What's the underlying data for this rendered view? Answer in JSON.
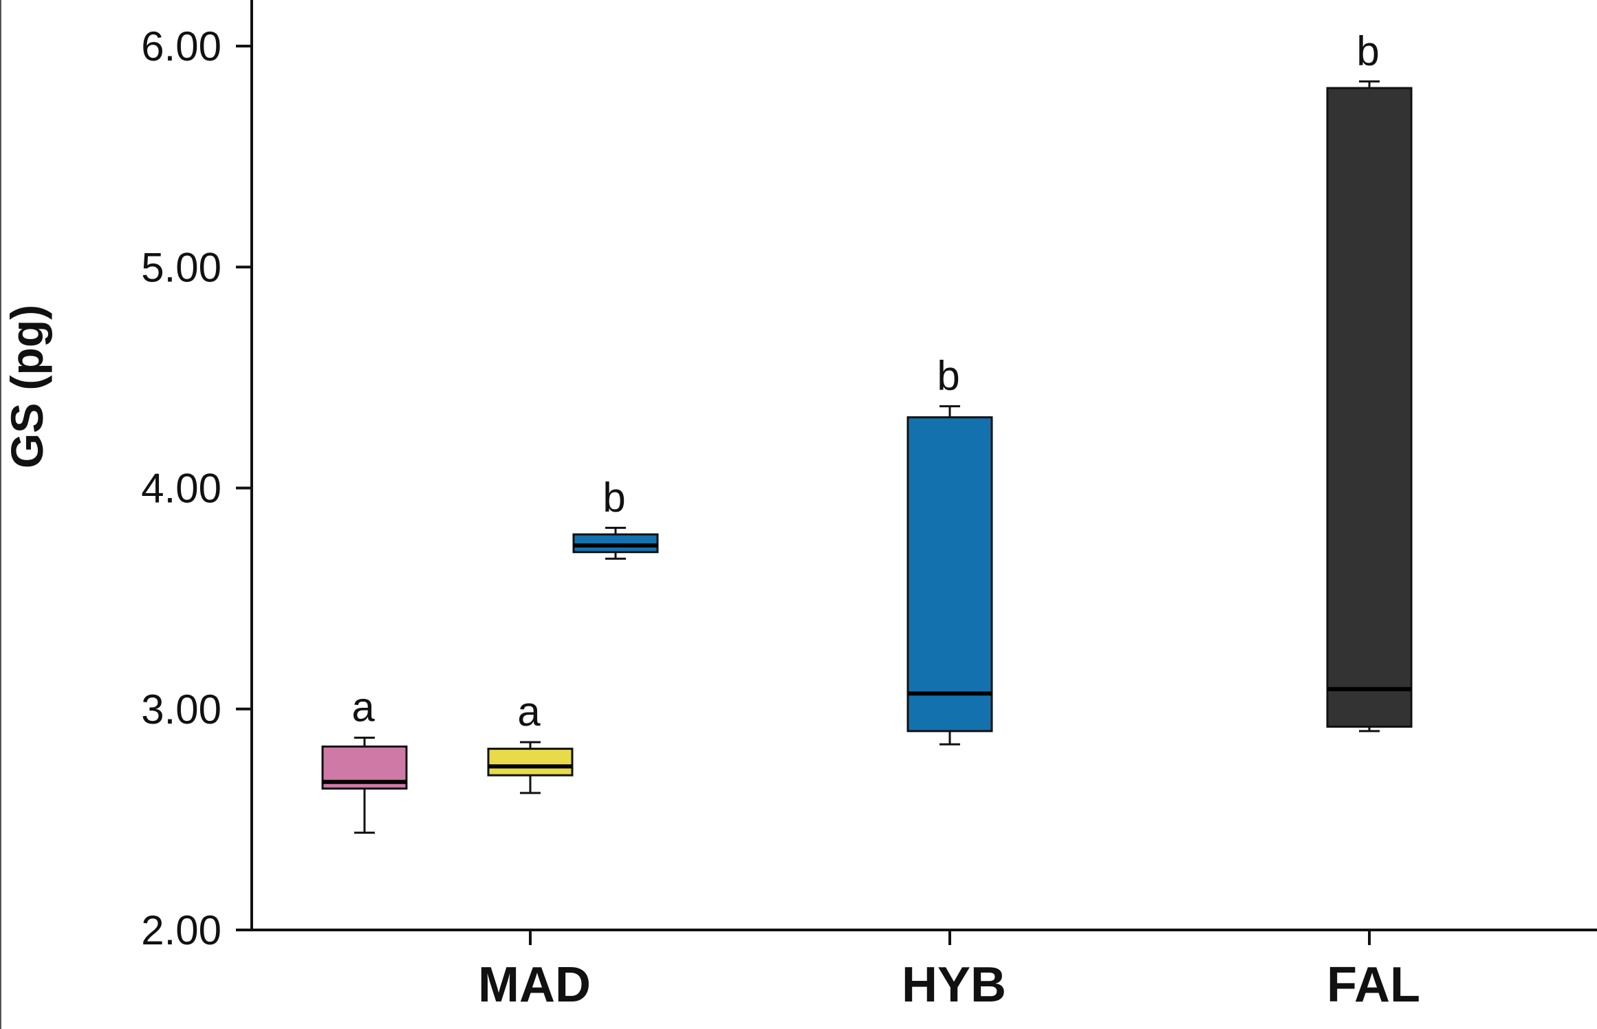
{
  "chart_data": {
    "type": "box",
    "ylabel": "GS (pg)",
    "xlabel": "",
    "ylim": [
      2.0,
      6.0
    ],
    "yticks": [
      "2.00",
      "3.00",
      "4.00",
      "5.00",
      "6.00"
    ],
    "categories": [
      "MAD",
      "HYB",
      "FAL"
    ],
    "boxes": [
      {
        "category": "MAD",
        "color": "#cf7aa6",
        "whisker_low": 2.44,
        "q1": 2.64,
        "median": 2.67,
        "q3": 2.83,
        "whisker_high": 2.87,
        "label": "a"
      },
      {
        "category": "MAD",
        "color": "#e8db4a",
        "whisker_low": 2.62,
        "q1": 2.7,
        "median": 2.74,
        "q3": 2.82,
        "whisker_high": 2.85,
        "label": "a"
      },
      {
        "category": "MAD",
        "color": "#1372ae",
        "whisker_low": 3.68,
        "q1": 3.71,
        "median": 3.74,
        "q3": 3.79,
        "whisker_high": 3.82,
        "label": "b"
      },
      {
        "category": "HYB",
        "color": "#1372ae",
        "whisker_low": 2.84,
        "q1": 2.9,
        "median": 3.07,
        "q3": 4.32,
        "whisker_high": 4.37,
        "label": "b"
      },
      {
        "category": "FAL",
        "color": "#333333",
        "whisker_low": 2.9,
        "q1": 2.92,
        "median": 3.09,
        "q3": 5.81,
        "whisker_high": 5.84,
        "label": "b"
      }
    ],
    "grid": false,
    "legend": "none"
  }
}
